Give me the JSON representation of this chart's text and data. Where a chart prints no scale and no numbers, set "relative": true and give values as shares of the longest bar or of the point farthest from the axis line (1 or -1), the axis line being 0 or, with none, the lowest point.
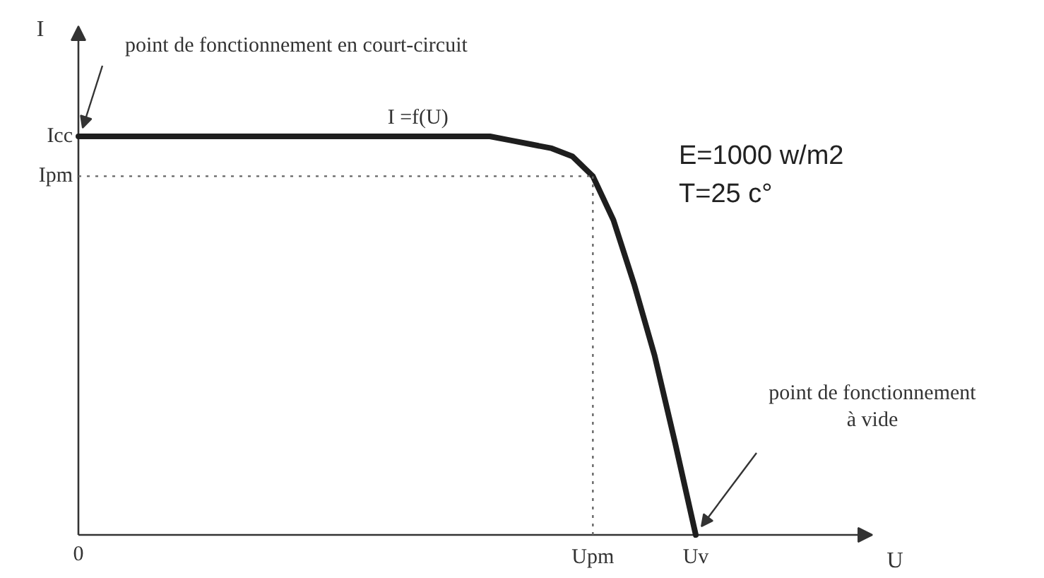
{
  "chart_data": {
    "type": "line",
    "ylabel": "I",
    "relative": true,
    "categories": [
      "0",
      null,
      null,
      null,
      null,
      null,
      null,
      null,
      null,
      null,
      null,
      null,
      null,
      null,
      null,
      null,
      null,
      null,
      null,
      null,
      null,
      null,
      null,
      null,
      null,
      "Upm",
      null,
      null,
      null,
      null,
      "Uv"
    ],
    "series": [
      {
        "name": "I =f(U)",
        "color": "#1e1e1e",
        "values": [
          1,
          1,
          1,
          1,
          1,
          1,
          1,
          1,
          1,
          1,
          1,
          1,
          1,
          1,
          1,
          1,
          1,
          1,
          1,
          1,
          1,
          0.99,
          0.98,
          0.97,
          0.95,
          0.9,
          0.79,
          0.63,
          0.45,
          0.23,
          0
        ]
      }
    ],
    "ref_lines": [
      {
        "axis": "y",
        "value": 0.9,
        "label": "Ipm",
        "color": "#666666",
        "line_style": "dotted"
      },
      {
        "axis": "x",
        "value": "Upm",
        "color": "#666666",
        "line_style": "dotted"
      }
    ],
    "annotations": [
      {
        "text": "point de fonctionnement en court-circuit",
        "x": "0",
        "y": 1
      },
      "Icc",
      "E=1000 w/m2",
      "T=25 c°",
      {
        "text": "point de fonctionnement\nà vide",
        "x": "Uv",
        "y": 0
      },
      "U"
    ],
    "grid": false,
    "legend": false,
    "marker": "none",
    "line_style": "solid"
  }
}
